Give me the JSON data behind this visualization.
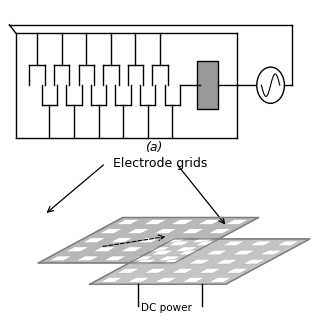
{
  "bg_color": "#ffffff",
  "label_electrode": "Electrode grids",
  "label_a": "(a)",
  "label_dc": "DC power",
  "grid_face": "#c0c0c0",
  "grid_edge": "#888888",
  "box_face": "#999999",
  "lw": 1.0
}
